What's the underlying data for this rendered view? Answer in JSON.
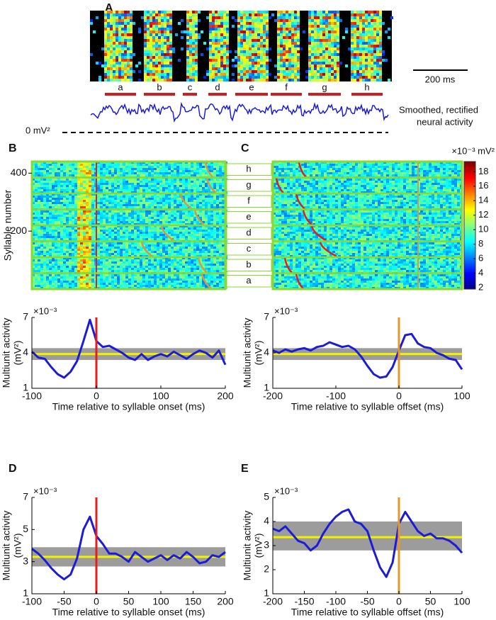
{
  "panel_labels": [
    "A",
    "B",
    "C",
    "D",
    "E"
  ],
  "spectrogram": {
    "syllables": [
      "a",
      "b",
      "c",
      "d",
      "e",
      "f",
      "g",
      "h"
    ],
    "scale_bar": "200 ms",
    "trace_label": [
      "Smoothed, rectified",
      "neural activity"
    ],
    "zero_label": "0 mV²"
  },
  "raster": {
    "y_label": "Syllable number",
    "ylim": [
      0,
      440
    ],
    "yticks": [
      200,
      400
    ],
    "syllables": [
      "h",
      "g",
      "f",
      "e",
      "d",
      "c",
      "b",
      "a"
    ]
  },
  "colorbar": {
    "label": "×10⁻³ mV²",
    "lim": [
      1.8,
      19.4
    ],
    "ticks": [
      2,
      4,
      6,
      8,
      10,
      12,
      14,
      16,
      18
    ]
  },
  "chart_data": [
    {
      "type": "line",
      "multiplier": "×10⁻³",
      "y_label": "Multiunit activity",
      "y_unit": "(mV²)",
      "x_label": "Time relative to syllable onset (ms)",
      "xlim": [
        -100,
        200
      ],
      "xticks": [
        -100,
        0,
        100,
        200
      ],
      "ylim": [
        1,
        7
      ],
      "yticks": [
        1,
        4,
        7
      ],
      "x": [
        -100,
        -90,
        -80,
        -70,
        -60,
        -50,
        -40,
        -30,
        -20,
        -10,
        0,
        10,
        20,
        30,
        40,
        50,
        60,
        70,
        80,
        90,
        100,
        110,
        120,
        130,
        140,
        150,
        160,
        170,
        180,
        190,
        200
      ],
      "values": [
        4.1,
        3.6,
        3.5,
        2.8,
        2.2,
        1.9,
        2.4,
        3.3,
        5.0,
        6.8,
        5.0,
        4.5,
        4.6,
        4.3,
        4.0,
        3.6,
        3.4,
        3.9,
        3.4,
        3.7,
        3.9,
        3.7,
        4.1,
        3.8,
        3.5,
        3.9,
        4.2,
        4.0,
        3.6,
        4.2,
        3.0
      ],
      "color": "#1c1cd8",
      "mean": 3.9,
      "mean_color": "#f2f200",
      "band": [
        3.4,
        4.4
      ],
      "band_color": "#9c9c9c",
      "marker_x": 0,
      "marker_color": "#e02020"
    },
    {
      "type": "line",
      "multiplier": "×10⁻³",
      "y_label": "Multiunit activity",
      "y_unit": "(mV²)",
      "x_label": "Time relative to syllable offset (ms)",
      "xlim": [
        -200,
        100
      ],
      "xticks": [
        -200,
        -100,
        0,
        100
      ],
      "ylim": [
        1,
        7
      ],
      "yticks": [
        1,
        4,
        7
      ],
      "x": [
        -200,
        -190,
        -180,
        -170,
        -160,
        -150,
        -140,
        -130,
        -120,
        -110,
        -100,
        -90,
        -80,
        -70,
        -60,
        -50,
        -40,
        -30,
        -20,
        -10,
        0,
        10,
        20,
        30,
        40,
        50,
        60,
        70,
        80,
        90,
        100
      ],
      "values": [
        4.2,
        4.0,
        4.3,
        4.1,
        4.3,
        4.4,
        4.2,
        4.5,
        4.6,
        4.9,
        4.7,
        4.5,
        4.6,
        4.3,
        3.7,
        2.9,
        2.2,
        1.9,
        2.0,
        2.8,
        4.2,
        5.5,
        5.6,
        4.8,
        4.5,
        4.4,
        4.0,
        3.8,
        3.5,
        3.4,
        2.6
      ],
      "color": "#1c1cd8",
      "mean": 3.9,
      "mean_color": "#f2f200",
      "band": [
        3.4,
        4.4
      ],
      "band_color": "#9c9c9c",
      "marker_x": 0,
      "marker_color": "#e8962a"
    },
    {
      "type": "line",
      "multiplier": "×10⁻³",
      "y_label": "Multiunit activity",
      "y_unit": "(mV²)",
      "x_label": "Time relative to syllable onset (ms)",
      "xlim": [
        -100,
        200
      ],
      "xticks": [
        -100,
        -50,
        0,
        50,
        100,
        150,
        200
      ],
      "ylim": [
        1,
        7
      ],
      "yticks": [
        1,
        3,
        5,
        7
      ],
      "x": [
        -100,
        -90,
        -80,
        -70,
        -60,
        -50,
        -40,
        -30,
        -20,
        -10,
        0,
        10,
        20,
        30,
        40,
        50,
        60,
        70,
        80,
        90,
        100,
        110,
        120,
        130,
        140,
        150,
        160,
        170,
        180,
        190,
        200
      ],
      "values": [
        3.8,
        3.5,
        3.1,
        2.6,
        2.2,
        1.9,
        2.2,
        3.2,
        5.0,
        5.8,
        4.6,
        4.1,
        3.5,
        3.5,
        3.3,
        3.0,
        3.6,
        3.3,
        3.0,
        3.2,
        3.4,
        3.1,
        3.4,
        3.2,
        3.6,
        3.3,
        2.9,
        3.0,
        3.4,
        3.3,
        3.6
      ],
      "color": "#1c1cd8",
      "mean": 3.3,
      "mean_color": "#f2f200",
      "band": [
        2.7,
        3.9
      ],
      "band_color": "#9c9c9c",
      "marker_x": 0,
      "marker_color": "#e02020"
    },
    {
      "type": "line",
      "multiplier": "×10⁻³",
      "y_label": "Multiunit activity",
      "y_unit": "(mV²)",
      "x_label": "Time relative to syllable offset (ms)",
      "xlim": [
        -200,
        100
      ],
      "xticks": [
        -200,
        -150,
        -100,
        -50,
        0,
        50,
        100
      ],
      "ylim": [
        1,
        5
      ],
      "yticks": [
        1,
        2,
        3,
        4,
        5
      ],
      "x": [
        -200,
        -190,
        -180,
        -170,
        -160,
        -150,
        -140,
        -130,
        -120,
        -110,
        -100,
        -90,
        -80,
        -70,
        -60,
        -50,
        -40,
        -30,
        -20,
        -10,
        0,
        10,
        20,
        30,
        40,
        50,
        60,
        70,
        80,
        90,
        100
      ],
      "values": [
        3.7,
        3.6,
        3.8,
        3.5,
        3.2,
        3.1,
        2.8,
        3.0,
        3.5,
        3.9,
        4.2,
        4.4,
        4.5,
        4.0,
        3.9,
        3.6,
        2.8,
        2.1,
        1.7,
        2.3,
        3.9,
        4.4,
        4.0,
        3.6,
        3.4,
        3.5,
        3.3,
        3.3,
        3.2,
        3.0,
        2.7
      ],
      "color": "#1c1cd8",
      "mean": 3.35,
      "mean_color": "#f2f200",
      "band": [
        2.8,
        4.0
      ],
      "band_color": "#9c9c9c",
      "marker_x": 0,
      "marker_color": "#e8962a"
    }
  ]
}
